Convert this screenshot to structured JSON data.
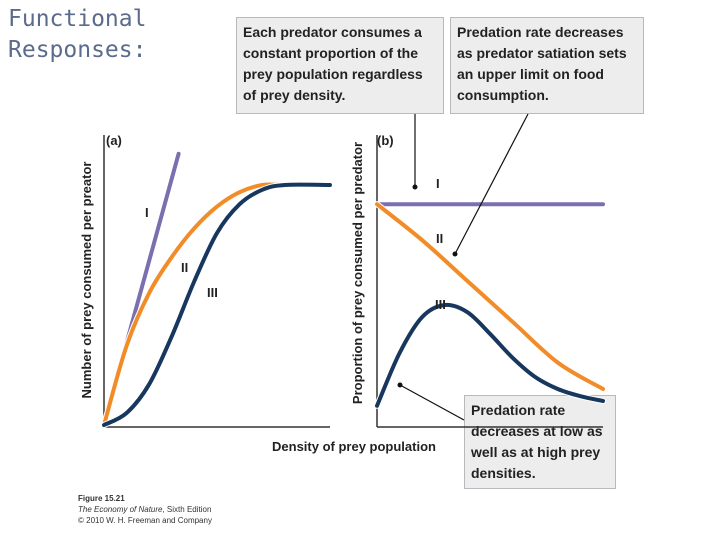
{
  "slide": {
    "title": "Functional\nResponses:"
  },
  "callouts": {
    "left": "Each predator consumes a constant proportion of the prey population regardless of prey density.",
    "right": "Predation rate decreases as predator satiation sets an upper limit on food consumption.",
    "bottom": "Predation rate decreases at low as well as at high prey densities."
  },
  "caption": {
    "figure": "Figure 15.21",
    "book_title": "The Economy of Nature",
    "book_edition": ", Sixth Edition",
    "copyright": "© 2010 W. H. Freeman and Company"
  },
  "colors": {
    "type_I": "#7b6fb0",
    "type_II": "#f28c28",
    "type_III": "#17375e",
    "axis": "#333333"
  },
  "chart_data": [
    {
      "type": "line",
      "panel": "(a)",
      "xlabel": "Density of prey population",
      "ylabel": "Number of prey consumed per preator",
      "xlim": [
        0,
        1
      ],
      "ylim": [
        0,
        1
      ],
      "series": [
        {
          "name": "I",
          "x": [
            0,
            0.33
          ],
          "y": [
            0,
            1.13
          ]
        },
        {
          "name": "II",
          "x": [
            0,
            0.1,
            0.2,
            0.3,
            0.4,
            0.5,
            0.6,
            0.7,
            0.8,
            1.0
          ],
          "y": [
            0,
            0.33,
            0.55,
            0.7,
            0.82,
            0.91,
            0.97,
            1.0,
            1.0,
            1.0
          ]
        },
        {
          "name": "III",
          "x": [
            0,
            0.1,
            0.2,
            0.3,
            0.4,
            0.5,
            0.6,
            0.7,
            0.8,
            1.0
          ],
          "y": [
            0,
            0.05,
            0.17,
            0.37,
            0.6,
            0.8,
            0.92,
            0.98,
            1.0,
            1.0
          ]
        }
      ]
    },
    {
      "type": "line",
      "panel": "(b)",
      "xlabel": "Density of prey population",
      "ylabel": "Proportion of prey consumed per predator",
      "xlim": [
        0,
        1
      ],
      "ylim": [
        0,
        1
      ],
      "series": [
        {
          "name": "I",
          "x": [
            0,
            1
          ],
          "y": [
            0.92,
            0.92
          ]
        },
        {
          "name": "II",
          "x": [
            0,
            0.2,
            0.4,
            0.6,
            0.8,
            1.0
          ],
          "y": [
            0.92,
            0.77,
            0.6,
            0.43,
            0.26,
            0.15
          ]
        },
        {
          "name": "III",
          "x": [
            0,
            0.1,
            0.2,
            0.3,
            0.4,
            0.5,
            0.6,
            0.7,
            0.8,
            0.9,
            1.0
          ],
          "y": [
            0.08,
            0.3,
            0.45,
            0.5,
            0.47,
            0.38,
            0.28,
            0.2,
            0.15,
            0.12,
            0.1
          ]
        }
      ]
    }
  ]
}
